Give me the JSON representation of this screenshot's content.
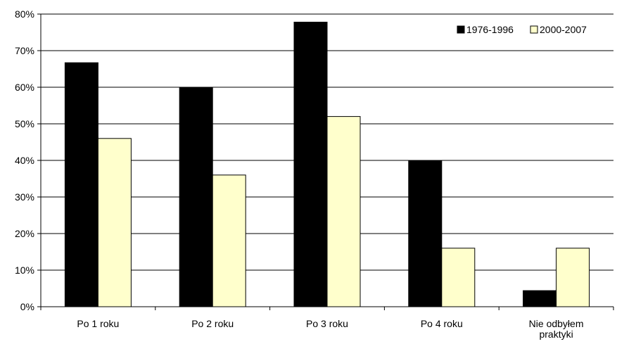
{
  "chart_data": {
    "type": "bar",
    "title": "",
    "xlabel": "",
    "ylabel": "",
    "categories": [
      [
        "Po 1 roku"
      ],
      [
        "Po 2 roku"
      ],
      [
        "Po 3 roku"
      ],
      [
        "Po 4 roku"
      ],
      [
        "Nie odbyłem",
        "praktyki"
      ]
    ],
    "series": [
      {
        "name": "1976-1996",
        "color": "#000000",
        "values": [
          66.7,
          60,
          77.8,
          40,
          4.4
        ]
      },
      {
        "name": "2000-2007",
        "color": "#FFFFCC",
        "values": [
          46,
          36,
          52,
          16,
          16
        ]
      }
    ],
    "ylim": [
      0,
      80
    ],
    "yticks": [
      0,
      10,
      20,
      30,
      40,
      50,
      60,
      70,
      80
    ],
    "ytick_labels": [
      "0%",
      "10%",
      "20%",
      "30%",
      "40%",
      "50%",
      "60%",
      "70%",
      "80%"
    ],
    "grid": true,
    "legend_position": "top-right"
  }
}
